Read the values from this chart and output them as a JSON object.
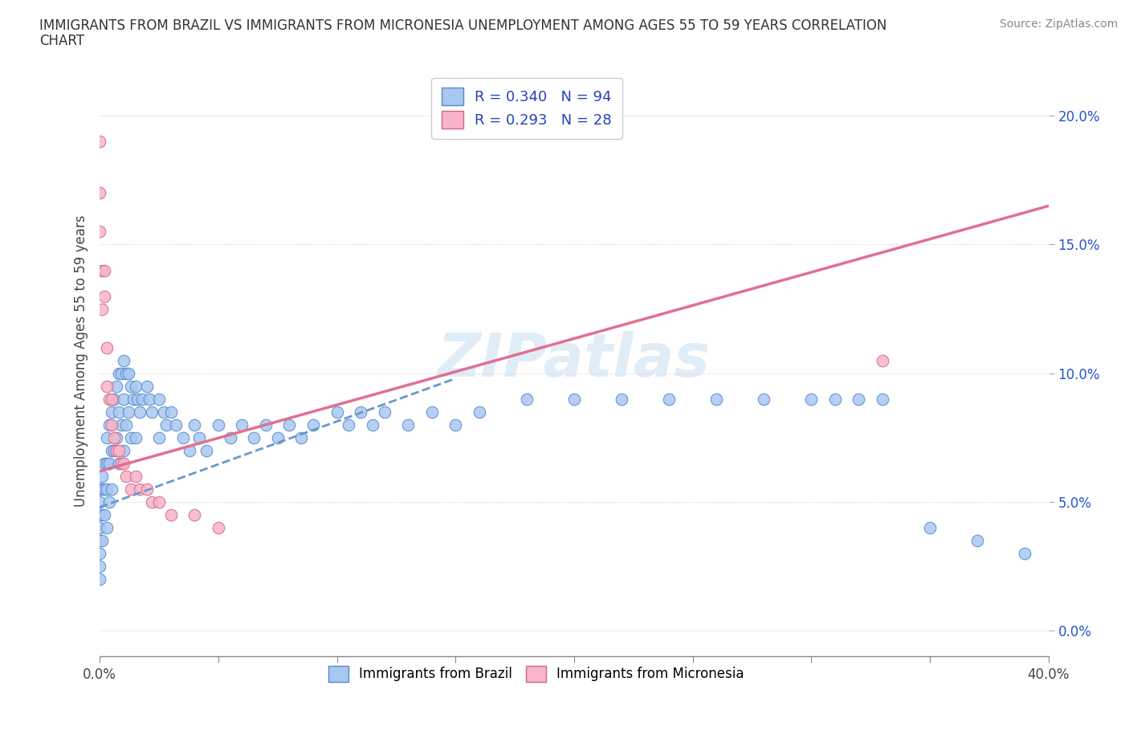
{
  "title_line1": "IMMIGRANTS FROM BRAZIL VS IMMIGRANTS FROM MICRONESIA UNEMPLOYMENT AMONG AGES 55 TO 59 YEARS CORRELATION",
  "title_line2": "CHART",
  "source": "Source: ZipAtlas.com",
  "ylabel": "Unemployment Among Ages 55 to 59 years",
  "xlim": [
    0.0,
    0.4
  ],
  "ylim": [
    -0.01,
    0.22
  ],
  "xticks": [
    0.0,
    0.05,
    0.1,
    0.15,
    0.2,
    0.25,
    0.3,
    0.35,
    0.4
  ],
  "xtick_labels_show": {
    "0": "0.0%",
    "8": "40.0%"
  },
  "yticks": [
    0.0,
    0.05,
    0.1,
    0.15,
    0.2
  ],
  "ytick_labels": [
    "0.0%",
    "5.0%",
    "10.0%",
    "15.0%",
    "20.0%"
  ],
  "brazil_color": "#a8c8f0",
  "brazil_edge": "#5588cc",
  "micronesia_color": "#f8b4c8",
  "micronesia_edge": "#cc6688",
  "brazil_line_color": "#6699cc",
  "micronesia_line_color": "#e07090",
  "watermark": "ZIPatlas",
  "legend_label_brazil": "Immigrants from Brazil",
  "legend_label_micronesia": "Immigrants from Micronesia",
  "brazil_R": 0.34,
  "brazil_N": 94,
  "micronesia_R": 0.293,
  "micronesia_N": 28,
  "brazil_scatter_x": [
    0.0,
    0.0,
    0.0,
    0.0,
    0.0,
    0.0,
    0.0,
    0.0,
    0.001,
    0.001,
    0.001,
    0.001,
    0.002,
    0.002,
    0.002,
    0.003,
    0.003,
    0.003,
    0.003,
    0.004,
    0.004,
    0.004,
    0.005,
    0.005,
    0.005,
    0.006,
    0.006,
    0.007,
    0.007,
    0.008,
    0.008,
    0.008,
    0.009,
    0.009,
    0.01,
    0.01,
    0.01,
    0.011,
    0.011,
    0.012,
    0.012,
    0.013,
    0.013,
    0.014,
    0.015,
    0.015,
    0.016,
    0.017,
    0.018,
    0.02,
    0.021,
    0.022,
    0.025,
    0.025,
    0.027,
    0.028,
    0.03,
    0.032,
    0.035,
    0.038,
    0.04,
    0.042,
    0.045,
    0.05,
    0.055,
    0.06,
    0.065,
    0.07,
    0.075,
    0.08,
    0.085,
    0.09,
    0.1,
    0.105,
    0.11,
    0.115,
    0.12,
    0.13,
    0.14,
    0.15,
    0.16,
    0.18,
    0.2,
    0.22,
    0.24,
    0.26,
    0.28,
    0.3,
    0.31,
    0.32,
    0.33,
    0.35,
    0.37,
    0.39
  ],
  "brazil_scatter_y": [
    0.055,
    0.05,
    0.045,
    0.04,
    0.035,
    0.03,
    0.025,
    0.02,
    0.06,
    0.055,
    0.045,
    0.035,
    0.065,
    0.055,
    0.045,
    0.075,
    0.065,
    0.055,
    0.04,
    0.08,
    0.065,
    0.05,
    0.085,
    0.07,
    0.055,
    0.09,
    0.07,
    0.095,
    0.075,
    0.1,
    0.085,
    0.065,
    0.1,
    0.08,
    0.105,
    0.09,
    0.07,
    0.1,
    0.08,
    0.1,
    0.085,
    0.095,
    0.075,
    0.09,
    0.095,
    0.075,
    0.09,
    0.085,
    0.09,
    0.095,
    0.09,
    0.085,
    0.09,
    0.075,
    0.085,
    0.08,
    0.085,
    0.08,
    0.075,
    0.07,
    0.08,
    0.075,
    0.07,
    0.08,
    0.075,
    0.08,
    0.075,
    0.08,
    0.075,
    0.08,
    0.075,
    0.08,
    0.085,
    0.08,
    0.085,
    0.08,
    0.085,
    0.08,
    0.085,
    0.08,
    0.085,
    0.09,
    0.09,
    0.09,
    0.09,
    0.09,
    0.09,
    0.09,
    0.09,
    0.09,
    0.09,
    0.04,
    0.035,
    0.03
  ],
  "micronesia_scatter_x": [
    0.0,
    0.0,
    0.0,
    0.001,
    0.001,
    0.002,
    0.002,
    0.003,
    0.003,
    0.004,
    0.005,
    0.005,
    0.006,
    0.007,
    0.008,
    0.009,
    0.01,
    0.011,
    0.013,
    0.015,
    0.017,
    0.02,
    0.022,
    0.025,
    0.03,
    0.04,
    0.05,
    0.33
  ],
  "micronesia_scatter_y": [
    0.19,
    0.17,
    0.155,
    0.14,
    0.125,
    0.14,
    0.13,
    0.11,
    0.095,
    0.09,
    0.09,
    0.08,
    0.075,
    0.07,
    0.07,
    0.065,
    0.065,
    0.06,
    0.055,
    0.06,
    0.055,
    0.055,
    0.05,
    0.05,
    0.045,
    0.045,
    0.04,
    0.105
  ],
  "brazil_trendline_x": [
    0.0,
    0.15
  ],
  "brazil_trendline_y": [
    0.048,
    0.098
  ],
  "micronesia_trendline_x": [
    0.0,
    0.4
  ],
  "micronesia_trendline_y": [
    0.062,
    0.165
  ]
}
